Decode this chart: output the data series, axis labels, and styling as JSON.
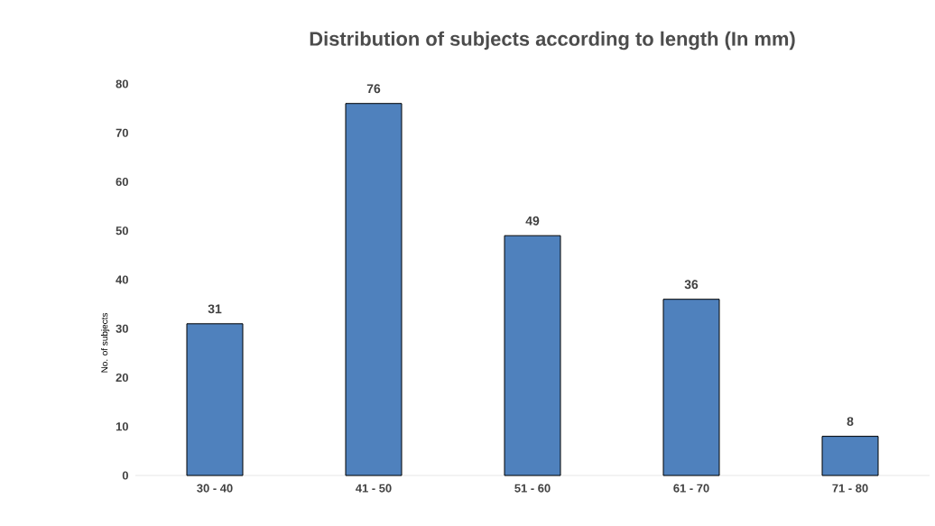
{
  "chart_data": {
    "type": "bar",
    "title": "Distribution of subjects according to length (In mm)",
    "ylabel": "No. of subjects",
    "categories": [
      "30 - 40",
      "41 - 50",
      "51 - 60",
      "61 - 70",
      "71 - 80"
    ],
    "values": [
      31,
      76,
      49,
      36,
      8
    ],
    "color": "#4f81bd",
    "ylim": [
      0,
      80
    ],
    "yticks": [
      0,
      10,
      20,
      30,
      40,
      50,
      60,
      70,
      80
    ],
    "data_labels": true
  }
}
